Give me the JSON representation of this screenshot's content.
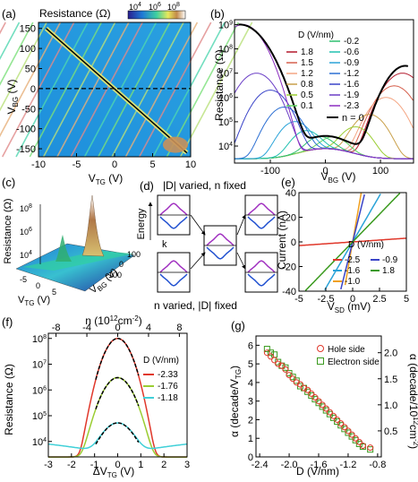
{
  "panels": {
    "a": {
      "label": "(a)",
      "colorbar_title": "Resistance (Ω)",
      "cb_ticks": [
        "10^4",
        "10^6",
        "10^8"
      ],
      "xlabel": "V",
      "xsub": "TG",
      "xunit": " (V)",
      "ylabel": "V",
      "ysub": "BG",
      "yunit": " (V)",
      "xticks": [
        "-10",
        "-5",
        "0",
        "5",
        "10"
      ],
      "yticks": [
        "150",
        "100",
        "50",
        "0",
        "-50",
        "-100",
        "-150"
      ]
    },
    "b": {
      "label": "(b)",
      "ylabel": "Resistance (Ω)",
      "xlabel": "V",
      "xsub": "BG",
      "xunit": " (V)",
      "xticks": [
        "-100",
        "0",
        "100"
      ],
      "legend_title": "D (V/nm)",
      "legend_left": [
        "1.8",
        "1.5",
        "1.2",
        "0.8",
        "0.5",
        "0.1"
      ],
      "legend_right": [
        "-0.2",
        "-0.6",
        "-0.9",
        "-1.2",
        "-1.6",
        "-1.9",
        "-2.3"
      ],
      "n0_label": "n = 0"
    },
    "c": {
      "label": "(c)",
      "zlabel": "Resistance (Ω)",
      "zticks": [
        "10^8",
        "10^6",
        "10^4"
      ],
      "tg_ticks": [
        "-5",
        "0",
        "5"
      ],
      "bg_ticks": [
        "-100",
        "0",
        "100"
      ],
      "tg_label": "V",
      "tg_sub": "TG",
      "bg_label": "V",
      "bg_sub": "BG",
      "unit": " (V)"
    },
    "d": {
      "label": "(d)",
      "top_caption": "|D| varied, n fixed",
      "bottom_caption": "n varied, |D| fixed",
      "energy": "Energy",
      "k": "k"
    },
    "e": {
      "label": "(e)",
      "ylabel": "Current (nA)",
      "xlabel": "V",
      "xsub": "SD",
      "xunit": " (mV)",
      "yticks": [
        "40",
        "20",
        "0",
        "-20",
        "-40"
      ],
      "xticks": [
        "-5",
        "-2.5",
        "0",
        "2.5",
        "5"
      ],
      "legend_title": "D (V/nm)",
      "legend": [
        "-2.5",
        "-1.6",
        "-1.0",
        "-0.9",
        "1.8"
      ]
    },
    "f": {
      "label": "(f)",
      "top_axis": "n (10^12 cm^-2)",
      "top_ticks": [
        "-8",
        "-4",
        "0",
        "4",
        "8"
      ],
      "ylabel": "Resistance (Ω)",
      "xlabel": "ΔV",
      "xsub": "TG",
      "xunit": " (V)",
      "xticks": [
        "-3",
        "-2",
        "-1",
        "0",
        "1",
        "2",
        "3"
      ],
      "legend_title": "D (V/nm)",
      "legend": [
        "-2.33",
        "-1.76",
        "-1.18"
      ]
    },
    "g": {
      "label": "(g)",
      "ylabel_left": "α (decade/V",
      "ylabel_left_sub": "TG",
      "ylabel_right": "α (decade/10^12 cm^-2)",
      "xlabel": "D (V/nm)",
      "xticks": [
        "-2.4",
        "-2.0",
        "-1.6",
        "-1.2",
        "-0.8"
      ],
      "yticks_left": [
        "6",
        "5",
        "4",
        "3",
        "2",
        "1",
        "0"
      ],
      "yticks_right": [
        "2.0",
        "1.5",
        "1.0",
        "0.5"
      ],
      "legend": [
        "Hole side",
        "Electron side"
      ]
    }
  },
  "chart_data": [
    {
      "type": "heatmap",
      "panel": "a",
      "xlim": [
        -10,
        10
      ],
      "ylim": [
        -170,
        165
      ],
      "log_colorbar": true
    },
    {
      "type": "line",
      "panel": "b",
      "x_range": [
        -160,
        160
      ],
      "log_y": true,
      "series": [
        {
          "name": "1.8",
          "peak": [
            140,
            10000000.0
          ]
        },
        {
          "name": "1.5",
          "peak": [
            125,
            3000000.0
          ]
        },
        {
          "name": "1.2",
          "peak": [
            110,
            1000000.0
          ]
        },
        {
          "name": "0.8",
          "peak": [
            80,
            200000.0
          ]
        },
        {
          "name": "0.5",
          "peak": [
            55,
            60000.0
          ]
        },
        {
          "name": "0.1",
          "peak": [
            15,
            20000.0
          ]
        },
        {
          "name": "-0.2",
          "peak": [
            -10,
            20000.0
          ]
        },
        {
          "name": "-0.6",
          "peak": [
            -35,
            40000.0
          ]
        },
        {
          "name": "-0.9",
          "peak": [
            -55,
            100000.0
          ]
        },
        {
          "name": "-1.2",
          "peak": [
            -75,
            400000.0
          ]
        },
        {
          "name": "-1.6",
          "peak": [
            -100,
            2000000.0
          ]
        },
        {
          "name": "-1.9",
          "peak": [
            -125,
            10000000.0
          ]
        },
        {
          "name": "-2.3",
          "peak": [
            -150,
            1000000000.0
          ]
        },
        {
          "name": "n = 0"
        }
      ]
    },
    {
      "type": "line",
      "panel": "e",
      "xlim": [
        -5,
        5
      ],
      "ylim": [
        -40,
        40
      ],
      "series": [
        {
          "name": "-2.5",
          "slope": 0.6
        },
        {
          "name": "-1.6",
          "slope": 15
        },
        {
          "name": "-1.0",
          "slope": 50
        },
        {
          "name": "-0.9",
          "slope": 35
        },
        {
          "name": "1.8",
          "slope": 9
        }
      ]
    },
    {
      "type": "line",
      "panel": "f",
      "xlim": [
        -3,
        3
      ],
      "log_y": true,
      "series": [
        {
          "name": "-2.33",
          "peak": 100000000.0
        },
        {
          "name": "-1.76",
          "peak": 3000000.0
        },
        {
          "name": "-1.18",
          "peak": 50000.0
        }
      ]
    },
    {
      "type": "scatter",
      "panel": "g",
      "xlim": [
        -2.45,
        -0.75
      ],
      "ylim": [
        0,
        6.5
      ],
      "series": [
        {
          "name": "Hole side",
          "points": [
            [
              -2.3,
              5.6
            ],
            [
              -2.25,
              5.4
            ],
            [
              -2.2,
              5.2
            ],
            [
              -2.15,
              5.0
            ],
            [
              -2.1,
              4.9
            ],
            [
              -2.05,
              4.7
            ],
            [
              -2.0,
              4.4
            ],
            [
              -1.95,
              4.2
            ],
            [
              -1.9,
              4.0
            ],
            [
              -1.85,
              3.9
            ],
            [
              -1.8,
              3.7
            ],
            [
              -1.75,
              3.6
            ],
            [
              -1.7,
              3.4
            ],
            [
              -1.65,
              3.2
            ],
            [
              -1.6,
              3.0
            ],
            [
              -1.55,
              2.8
            ],
            [
              -1.5,
              2.6
            ],
            [
              -1.45,
              2.4
            ],
            [
              -1.4,
              2.2
            ],
            [
              -1.35,
              2.0
            ],
            [
              -1.3,
              1.8
            ],
            [
              -1.25,
              1.6
            ],
            [
              -1.2,
              1.4
            ],
            [
              -1.15,
              1.2
            ],
            [
              -1.1,
              1.0
            ],
            [
              -1.05,
              0.8
            ],
            [
              -1.0,
              0.6
            ],
            [
              -0.9,
              0.5
            ]
          ]
        },
        {
          "name": "Electron side",
          "points": [
            [
              -2.3,
              5.8
            ],
            [
              -2.25,
              5.6
            ],
            [
              -2.2,
              5.5
            ],
            [
              -2.15,
              5.1
            ],
            [
              -2.1,
              4.9
            ],
            [
              -2.05,
              4.8
            ],
            [
              -2.0,
              4.5
            ],
            [
              -1.95,
              4.3
            ],
            [
              -1.9,
              4.1
            ],
            [
              -1.85,
              3.8
            ],
            [
              -1.8,
              3.7
            ],
            [
              -1.75,
              3.5
            ],
            [
              -1.7,
              3.3
            ],
            [
              -1.65,
              3.1
            ],
            [
              -1.6,
              2.9
            ],
            [
              -1.55,
              2.7
            ],
            [
              -1.5,
              2.5
            ],
            [
              -1.45,
              2.3
            ],
            [
              -1.4,
              2.1
            ],
            [
              -1.35,
              1.9
            ],
            [
              -1.3,
              1.7
            ],
            [
              -1.25,
              1.5
            ],
            [
              -1.2,
              1.3
            ],
            [
              -1.15,
              1.1
            ],
            [
              -1.1,
              0.9
            ],
            [
              -1.05,
              0.7
            ],
            [
              -1.0,
              0.55
            ],
            [
              -0.9,
              0.4
            ]
          ]
        }
      ]
    }
  ],
  "colors": {
    "hole": "#e0382b",
    "electron": "#3a9a1e",
    "palette": [
      "#b2182b",
      "#d6604d",
      "#f4a582",
      "#c9a04a",
      "#9acd32",
      "#5fd35f",
      "#2fbf71",
      "#20c0b0",
      "#2aa3d8",
      "#2c6fd3",
      "#3a44c8",
      "#6a3ec6",
      "#8c2ec0",
      "#000000"
    ]
  }
}
